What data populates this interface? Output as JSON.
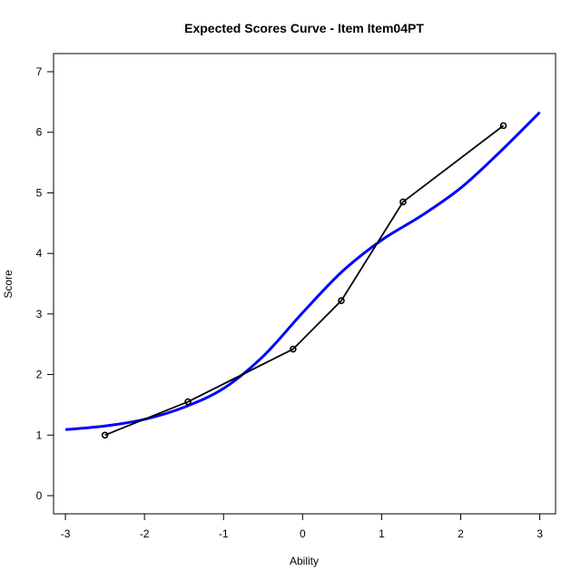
{
  "chart_data": {
    "type": "line",
    "title": "Expected Scores Curve - Item  Item04PT",
    "xlabel": "Ability",
    "ylabel": "Score",
    "xlim": [
      -3.15,
      3.2
    ],
    "ylim": [
      -0.3,
      7.3
    ],
    "x_ticks": [
      -3,
      -2,
      -1,
      0,
      1,
      2,
      3
    ],
    "y_ticks": [
      0,
      1,
      2,
      3,
      4,
      5,
      6,
      7
    ],
    "grid": false,
    "legend": "none",
    "series": [
      {
        "kind": "smooth-curve",
        "color": "#0000ff",
        "x": [
          -3.0,
          -2.5,
          -2.0,
          -1.5,
          -1.0,
          -0.5,
          0.0,
          0.5,
          1.0,
          1.5,
          2.0,
          2.5,
          3.0
        ],
        "y": [
          1.09,
          1.15,
          1.26,
          1.46,
          1.77,
          2.3,
          3.02,
          3.7,
          4.22,
          4.62,
          5.08,
          5.68,
          6.33
        ]
      },
      {
        "kind": "observed-points",
        "color": "#000000",
        "x": [
          -2.5,
          -1.45,
          -0.12,
          0.49,
          1.27,
          2.54
        ],
        "y": [
          1.0,
          1.55,
          2.42,
          3.22,
          4.85,
          6.11
        ]
      }
    ]
  }
}
